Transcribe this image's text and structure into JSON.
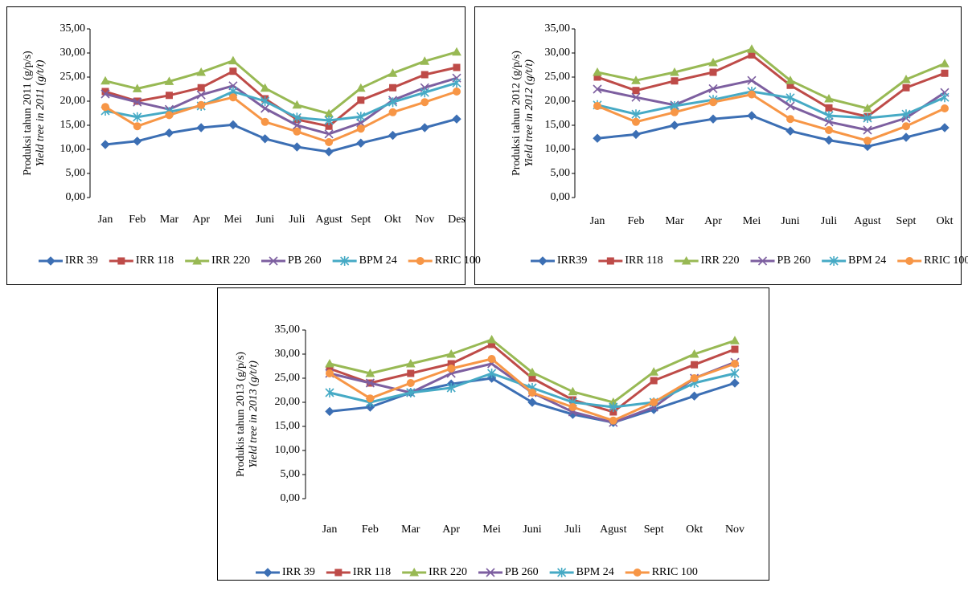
{
  "chart_data": [
    {
      "type": "line",
      "ylabel": "Produksi tahun 2011 (g/p/s)",
      "ylabel_en": "Yield tree in 2011 (g/t/t)",
      "categories": [
        "Jan",
        "Feb",
        "Mar",
        "Apr",
        "Mei",
        "Juni",
        "Juli",
        "Agust",
        "Sept",
        "Okt",
        "Nov",
        "Des"
      ],
      "ylim": [
        0,
        35
      ],
      "yticks": [
        {
          "value": 0,
          "label": "0,00"
        },
        {
          "value": 5,
          "label": "5,00"
        },
        {
          "value": 10,
          "label": "10,00"
        },
        {
          "value": 15,
          "label": "15,00"
        },
        {
          "value": 20,
          "label": "20,00"
        },
        {
          "value": 25,
          "label": "25,00"
        },
        {
          "value": 30,
          "label": "30,00"
        },
        {
          "value": 35,
          "label": "35,00"
        }
      ],
      "legend": "bottom",
      "series": [
        {
          "name": "IRR 39",
          "color": "#3c6fb4",
          "marker": "diamond",
          "values": [
            11.0,
            11.7,
            13.4,
            14.5,
            15.1,
            12.2,
            10.5,
            9.5,
            11.3,
            12.9,
            14.5,
            16.3
          ]
        },
        {
          "name": "IRR 118",
          "color": "#be4b48",
          "marker": "square",
          "values": [
            22.0,
            20.0,
            21.2,
            22.8,
            26.2,
            20.5,
            16.2,
            14.8,
            20.2,
            22.8,
            25.5,
            27.0
          ]
        },
        {
          "name": "IRR 220",
          "color": "#98b954",
          "marker": "triangle",
          "values": [
            24.2,
            22.6,
            24.1,
            26.0,
            28.4,
            22.7,
            19.2,
            17.4,
            22.7,
            25.8,
            28.3,
            30.2
          ]
        },
        {
          "name": "PB 260",
          "color": "#7d5fa0",
          "marker": "x",
          "values": [
            21.5,
            19.8,
            18.3,
            21.3,
            23.2,
            18.5,
            15.0,
            13.2,
            15.5,
            20.2,
            22.8,
            24.8
          ]
        },
        {
          "name": "BPM 24",
          "color": "#46aac5",
          "marker": "asterisk",
          "values": [
            18.0,
            16.7,
            17.8,
            19.0,
            22.0,
            20.0,
            16.6,
            16.0,
            16.8,
            19.8,
            21.8,
            23.8
          ]
        },
        {
          "name": "RRIC 100",
          "color": "#f79646",
          "marker": "circle",
          "values": [
            18.8,
            14.8,
            17.1,
            19.2,
            20.8,
            15.7,
            13.7,
            11.5,
            14.3,
            17.7,
            19.8,
            22.0
          ]
        }
      ]
    },
    {
      "type": "line",
      "ylabel": "Produksi tahun 2012 (g/p/s)",
      "ylabel_en": "Yield tree in 2012 (g/t/t)",
      "categories": [
        "Jan",
        "Feb",
        "Mar",
        "Apr",
        "Mei",
        "Juni",
        "Juli",
        "Agust",
        "Sept",
        "Okt"
      ],
      "ylim": [
        0,
        35
      ],
      "yticks": [
        {
          "value": 0,
          "label": "0,00"
        },
        {
          "value": 5,
          "label": "5,00"
        },
        {
          "value": 10,
          "label": "10,00"
        },
        {
          "value": 15,
          "label": "15,00"
        },
        {
          "value": 20,
          "label": "20,00"
        },
        {
          "value": 25,
          "label": "25,00"
        },
        {
          "value": 30,
          "label": "30,00"
        },
        {
          "value": 35,
          "label": "35,00"
        }
      ],
      "legend": "bottom",
      "series": [
        {
          "name": "IRR39",
          "color": "#3c6fb4",
          "marker": "diamond",
          "values": [
            12.3,
            13.1,
            15.0,
            16.3,
            17.0,
            13.8,
            11.9,
            10.6,
            12.5,
            14.5
          ]
        },
        {
          "name": "IRR 118",
          "color": "#be4b48",
          "marker": "square",
          "values": [
            25.0,
            22.2,
            24.2,
            26.0,
            29.6,
            23.3,
            18.6,
            16.8,
            22.8,
            25.8
          ]
        },
        {
          "name": "IRR 220",
          "color": "#98b954",
          "marker": "triangle",
          "values": [
            26.0,
            24.3,
            26.0,
            28.0,
            30.8,
            24.3,
            20.5,
            18.5,
            24.5,
            27.8
          ]
        },
        {
          "name": "PB 260",
          "color": "#7d5fa0",
          "marker": "x",
          "values": [
            22.5,
            20.8,
            19.2,
            22.6,
            24.3,
            19.0,
            15.7,
            14.0,
            16.5,
            21.8
          ]
        },
        {
          "name": "BPM 24",
          "color": "#46aac5",
          "marker": "asterisk",
          "values": [
            19.2,
            17.3,
            19.0,
            20.3,
            22.0,
            20.7,
            17.0,
            16.5,
            17.3,
            20.8
          ]
        },
        {
          "name": "RRIC 100",
          "color": "#f79646",
          "marker": "circle",
          "values": [
            19.0,
            15.7,
            17.7,
            19.8,
            21.4,
            16.3,
            14.0,
            11.8,
            14.8,
            18.5
          ]
        }
      ]
    },
    {
      "type": "line",
      "ylabel": "Produkis tahun 2013 (g/p/s)",
      "ylabel_en": "Yield tree in 2013 (g/t/t)",
      "categories": [
        "Jan",
        "Feb",
        "Mar",
        "Apr",
        "Mei",
        "Juni",
        "Juli",
        "Agust",
        "Sept",
        "Okt",
        "Nov"
      ],
      "ylim": [
        0,
        35
      ],
      "yticks": [
        {
          "value": 0,
          "label": "0,00"
        },
        {
          "value": 5,
          "label": "5,00"
        },
        {
          "value": 10,
          "label": "10,00"
        },
        {
          "value": 15,
          "label": "15,00"
        },
        {
          "value": 20,
          "label": "20,00"
        },
        {
          "value": 25,
          "label": "25,00"
        },
        {
          "value": 30,
          "label": "30,00"
        },
        {
          "value": 35,
          "label": "35,00"
        }
      ],
      "legend": "bottom",
      "series": [
        {
          "name": "IRR 39",
          "color": "#3c6fb4",
          "marker": "diamond",
          "values": [
            18.1,
            19.0,
            22.0,
            23.8,
            25.0,
            20.0,
            17.5,
            15.8,
            18.5,
            21.3,
            24.0
          ]
        },
        {
          "name": "IRR 118",
          "color": "#be4b48",
          "marker": "square",
          "values": [
            27.0,
            24.0,
            26.0,
            28.0,
            32.0,
            25.0,
            20.5,
            18.0,
            24.5,
            27.8,
            31.0
          ]
        },
        {
          "name": "IRR 220",
          "color": "#98b954",
          "marker": "triangle",
          "values": [
            28.0,
            26.0,
            28.0,
            30.0,
            33.0,
            26.2,
            22.2,
            20.0,
            26.3,
            30.0,
            32.8
          ]
        },
        {
          "name": "PB 260",
          "color": "#7d5fa0",
          "marker": "x",
          "values": [
            26.0,
            24.0,
            22.0,
            26.0,
            28.0,
            22.0,
            18.0,
            15.8,
            19.0,
            25.0,
            28.3
          ]
        },
        {
          "name": "BPM 24",
          "color": "#46aac5",
          "marker": "asterisk",
          "values": [
            22.0,
            20.0,
            22.0,
            23.0,
            26.0,
            23.0,
            20.0,
            19.0,
            20.0,
            24.0,
            26.0
          ]
        },
        {
          "name": "RRIC 100",
          "color": "#f79646",
          "marker": "circle",
          "values": [
            26.0,
            20.8,
            24.0,
            27.0,
            29.0,
            22.0,
            19.0,
            16.2,
            20.0,
            25.0,
            28.0
          ]
        }
      ]
    }
  ]
}
